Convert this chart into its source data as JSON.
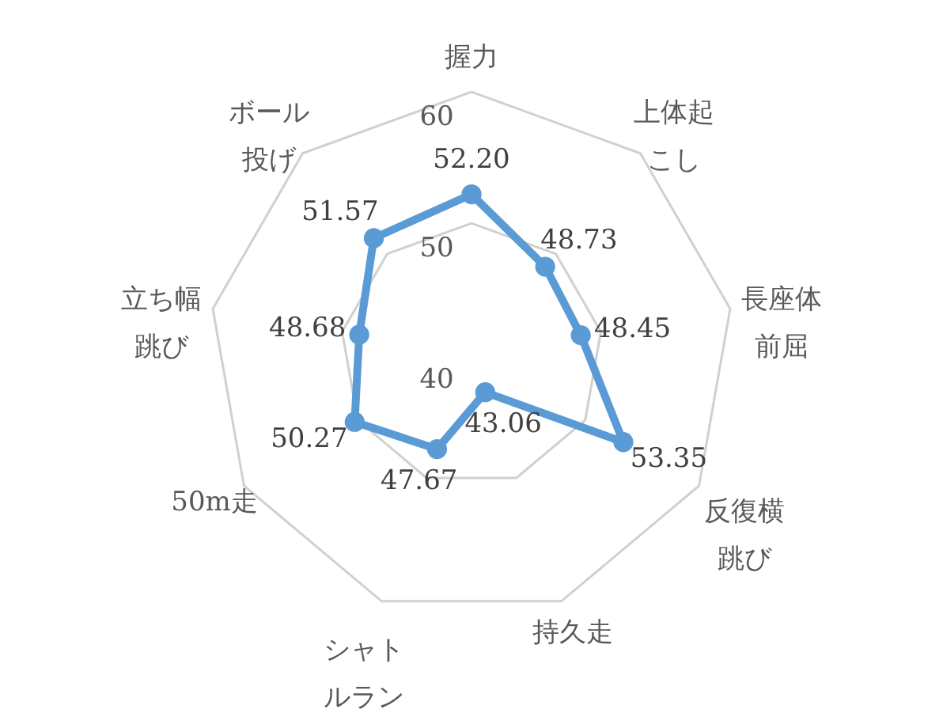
{
  "chart_data": {
    "type": "radar",
    "categories": [
      "握力",
      "上体起こし",
      "長座体前屈",
      "反復横跳び",
      "持久走",
      "シャトルラン",
      "50m走",
      "立ち幅跳び",
      "ボール投げ"
    ],
    "series": [
      {
        "color": "#5b9bd5",
        "values": [
          52.2,
          48.73,
          48.45,
          53.35,
          43.06,
          47.67,
          50.27,
          48.68,
          51.57
        ],
        "value_labels": [
          "52.20",
          "48.73",
          "48.45",
          "53.35",
          "43.06",
          "47.67",
          "50.27",
          "48.68",
          "51.57"
        ]
      }
    ],
    "ylim": [
      40,
      60
    ],
    "yticks": [
      40,
      50,
      60
    ],
    "grid": true,
    "marker": "circle"
  }
}
